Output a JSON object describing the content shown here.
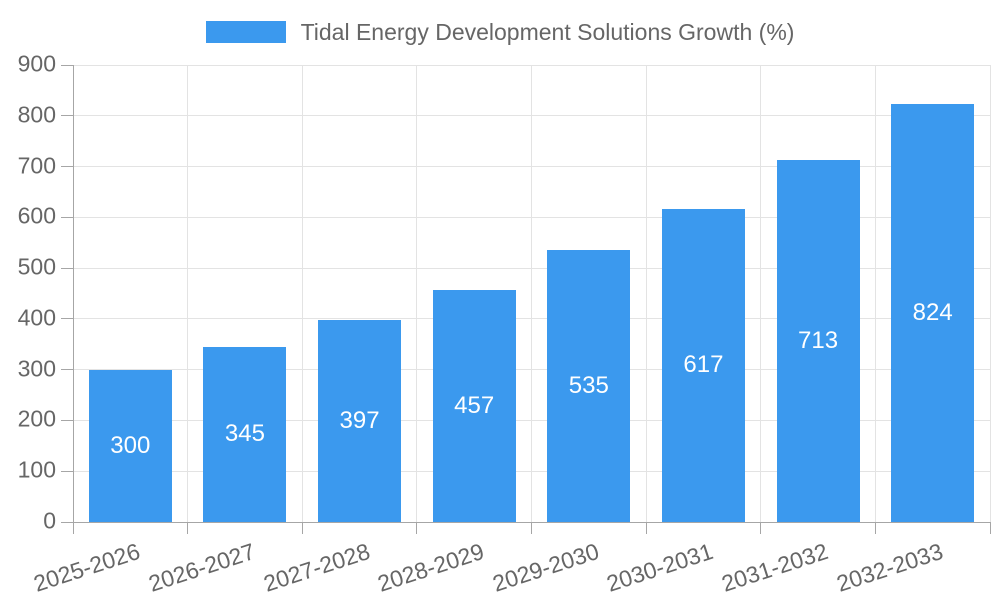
{
  "legend": {
    "label": "Tidal Energy Development Solutions Growth (%)",
    "position": "top"
  },
  "colors": {
    "bar": "#3b99ee",
    "bar_label": "#ffffff",
    "axis_text": "#666666",
    "grid_line": "#e3e3e3",
    "axis_line": "#a6a6a6",
    "background": "#ffffff"
  },
  "chart_data": {
    "type": "bar",
    "title": "Tidal Energy Development Solutions Growth (%)",
    "categories": [
      "2025-2026",
      "2026-2027",
      "2027-2028",
      "2028-2029",
      "2029-2030",
      "2030-2031",
      "2031-2032",
      "2032-2033"
    ],
    "values": [
      300,
      345,
      397,
      457,
      535,
      617,
      713,
      824
    ],
    "value_labels_position": "inside-center",
    "xlabel": "",
    "ylabel": "",
    "ylim": [
      0,
      900
    ],
    "yticks": [
      0,
      100,
      200,
      300,
      400,
      500,
      600,
      700,
      800,
      900
    ],
    "grid": true,
    "legend_position": "top",
    "x_tick_rotation_deg": -18
  }
}
